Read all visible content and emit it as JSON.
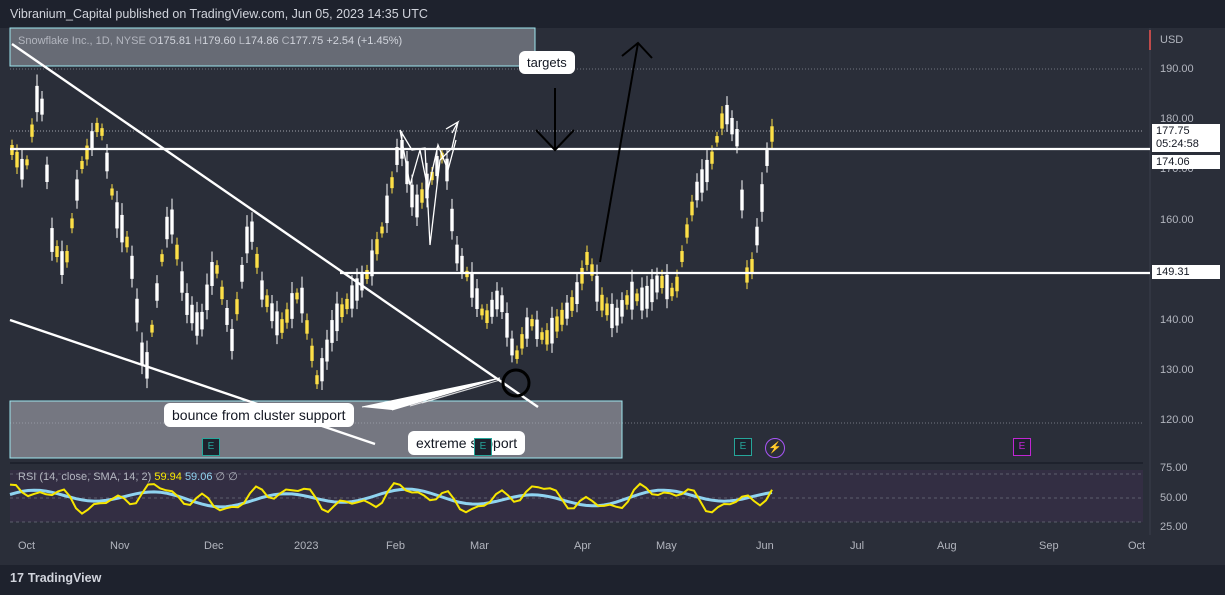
{
  "header": {
    "publisher_line": "Vibranium_Capital published on TradingView.com, Jun 05, 2023 14:35 UTC"
  },
  "legend": {
    "symbol": "Snowflake Inc., 1D, NYSE",
    "open_label": "O",
    "open": "175.81",
    "high_label": "H",
    "high": "179.60",
    "low_label": "L",
    "low": "174.86",
    "close_label": "C",
    "close": "177.75",
    "change": "+2.54 (+1.45%)"
  },
  "axis": {
    "currency": "USD",
    "price_ticks": [
      "190.00",
      "180.00",
      "170.00",
      "160.00",
      "150.00",
      "140.00",
      "130.00",
      "120.00"
    ],
    "rsi_ticks": [
      "75.00",
      "50.00",
      "25.00"
    ],
    "time_ticks": [
      "Oct",
      "Nov",
      "Dec",
      "2023",
      "Feb",
      "Mar",
      "Apr",
      "May",
      "Jun",
      "Jul",
      "Aug",
      "Sep",
      "Oct"
    ]
  },
  "price_tags": {
    "last": "177.75",
    "countdown": "05:24:58",
    "level_upper": "174.06",
    "level_lower": "149.31"
  },
  "annotations": {
    "targets": "targets",
    "bounce": "bounce from cluster support",
    "extreme": "extreme support"
  },
  "events": {
    "earnings": "E",
    "dividend_icon": "⚡"
  },
  "rsi": {
    "label": "RSI (14, close, SMA, 14, 2)",
    "value": "59.94",
    "sma": "59.06",
    "empty1": "∅",
    "empty2": "∅"
  },
  "footer": {
    "brand": "TradingView"
  },
  "colors": {
    "background": "#2a2e39",
    "candle_up": "#ffffff",
    "candle_down": "#fde047",
    "rsi_line": "#f7e600",
    "rsi_sma": "#8fd3f0"
  }
}
